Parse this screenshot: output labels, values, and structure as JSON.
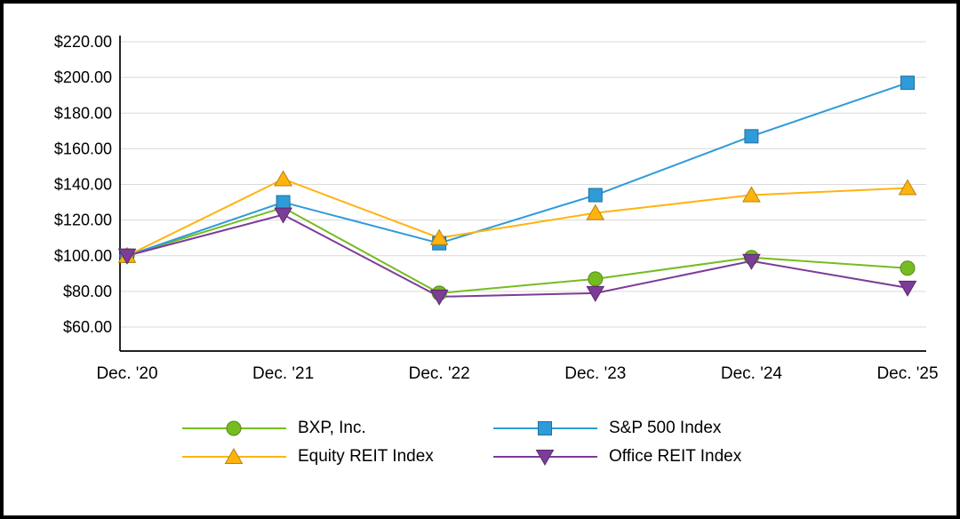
{
  "chart_data": {
    "type": "line",
    "title": "",
    "xlabel": "",
    "ylabel": "",
    "categories": [
      "Dec. '20",
      "Dec. '21",
      "Dec. '22",
      "Dec. '23",
      "Dec. '24",
      "Dec. '25"
    ],
    "y_axis": {
      "ticks": [
        220,
        200,
        180,
        160,
        140,
        120,
        100,
        80,
        60
      ],
      "tick_labels": [
        "$220.00",
        "$200.00",
        "$180.00",
        "$160.00",
        "$140.00",
        "$120.00",
        "$100.00",
        "$80.00",
        "$60.00"
      ],
      "min": 60,
      "max": 220,
      "format": "currency"
    },
    "grid": true,
    "gridline_color": "#D9D9D9",
    "axis_color": "#000000",
    "legend_position": "bottom",
    "series": [
      {
        "name": "BXP, Inc.",
        "color": "#76BC21",
        "marker": "circle",
        "values": [
          100,
          127,
          79,
          87,
          99,
          93
        ]
      },
      {
        "name": "S&P 500 Index",
        "color": "#2F9BD8",
        "marker": "square",
        "values": [
          100,
          130,
          107,
          134,
          167,
          197
        ]
      },
      {
        "name": "Equity REIT Index",
        "color": "#FFB30F",
        "marker": "triangle-up",
        "values": [
          100,
          143,
          110,
          124,
          134,
          138
        ]
      },
      {
        "name": "Office REIT Index",
        "color": "#7D3C98",
        "marker": "triangle-down",
        "values": [
          100,
          123,
          77,
          79,
          97,
          82
        ]
      }
    ]
  }
}
